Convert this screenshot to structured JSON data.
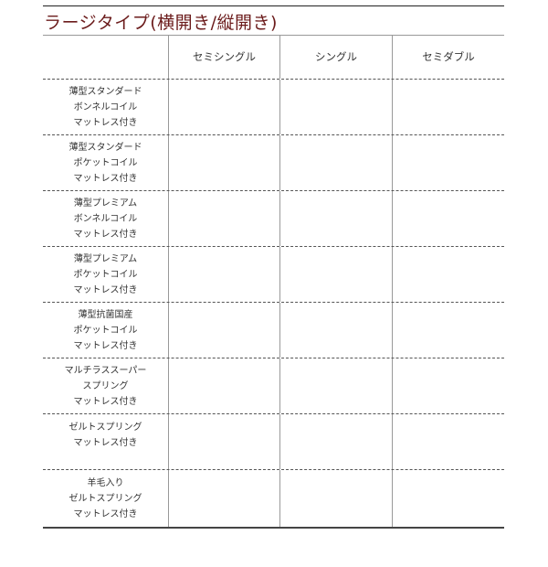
{
  "title": "ラージタイプ(横開き/縦開き)",
  "colors": {
    "title": "#6b1b1b"
  },
  "columns": [
    "",
    "セミシングル",
    "シングル",
    "セミダブル"
  ],
  "rows": [
    [
      "薄型スタンダード",
      "ボンネルコイル",
      "マットレス付き"
    ],
    [
      "薄型スタンダード",
      "ポケットコイル",
      "マットレス付き"
    ],
    [
      "薄型プレミアム",
      "ボンネルコイル",
      "マットレス付き"
    ],
    [
      "薄型プレミアム",
      "ポケットコイル",
      "マットレス付き"
    ],
    [
      "薄型抗菌国産",
      "ポケットコイル",
      "マットレス付き"
    ],
    [
      "マルチラススーパー",
      "スプリング",
      "マットレス付き"
    ],
    [
      "ゼルトスプリング",
      "マットレス付き"
    ],
    [
      "羊毛入り",
      "ゼルトスプリング",
      "マットレス付き"
    ]
  ]
}
